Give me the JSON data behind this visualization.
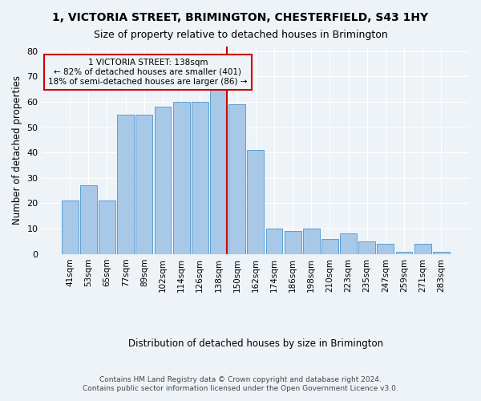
{
  "title": "1, VICTORIA STREET, BRIMINGTON, CHESTERFIELD, S43 1HY",
  "subtitle": "Size of property relative to detached houses in Brimington",
  "xlabel": "Distribution of detached houses by size in Brimington",
  "ylabel": "Number of detached properties",
  "categories": [
    "41sqm",
    "53sqm",
    "65sqm",
    "77sqm",
    "89sqm",
    "102sqm",
    "114sqm",
    "126sqm",
    "138sqm",
    "150sqm",
    "162sqm",
    "174sqm",
    "186sqm",
    "198sqm",
    "210sqm",
    "223sqm",
    "235sqm",
    "247sqm",
    "259sqm",
    "271sqm",
    "283sqm"
  ],
  "bar_values": [
    21,
    27,
    21,
    55,
    55,
    58,
    60,
    60,
    65,
    59,
    41,
    10,
    9,
    10,
    6,
    8,
    5,
    4,
    1,
    4,
    1
  ],
  "bar_color": "#a8c8e8",
  "bar_edge_color": "#5a9fd4",
  "vline_color": "#cc0000",
  "annotation_text": "1 VICTORIA STREET: 138sqm\n← 82% of detached houses are smaller (401)\n18% of semi-detached houses are larger (86) →",
  "annotation_box_color": "#cc0000",
  "ylim": [
    0,
    82
  ],
  "yticks": [
    0,
    10,
    20,
    30,
    40,
    50,
    60,
    70,
    80
  ],
  "bg_color": "#eef3f8",
  "grid_color": "#ffffff",
  "footer1": "Contains HM Land Registry data © Crown copyright and database right 2024.",
  "footer2": "Contains public sector information licensed under the Open Government Licence v3.0."
}
